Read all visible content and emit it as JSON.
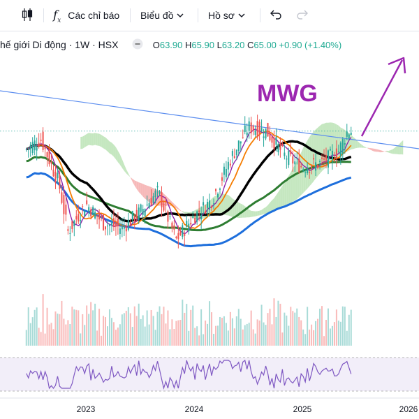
{
  "toolbar": {
    "indicators_label": "Các chỉ báo",
    "chart_label": "Biểu đồ",
    "profile_label": "Hồ sơ",
    "icons": [
      "candles-icon",
      "function-icon",
      "chevron-down-icon",
      "undo-icon",
      "redo-icon"
    ]
  },
  "symbol": {
    "title": "hế giới Di động · 1W · HSX",
    "open_key": "O",
    "open": "63.90",
    "high_key": "H",
    "high": "65.90",
    "low_key": "L",
    "low": "63.20",
    "close_key": "C",
    "close": "65.00",
    "change": "+0.90 (+1.40%)"
  },
  "colors": {
    "up": "#26a69a",
    "down": "#ef5350",
    "ema_black": "#000000",
    "ema_orange": "#f57c00",
    "ema_green": "#2e7d32",
    "ema_blue": "#1e6fdc",
    "ma_purple": "#8e24aa",
    "annotation": "#9c27b0",
    "trendline": "#5b8def",
    "cloud_bull": "#b7e1b0",
    "cloud_bear": "#f4a8a8"
  },
  "chart_data": {
    "type": "candlestick",
    "annotation": "MWG",
    "x_ticks": [
      "2023",
      "2024",
      "2025",
      "2026"
    ],
    "last_close": 65.0,
    "price_points": [
      {
        "x": "2022-06",
        "close": 60
      },
      {
        "x": "2022-08",
        "close": 63
      },
      {
        "x": "2022-10",
        "close": 52
      },
      {
        "x": "2022-11",
        "close": 40
      },
      {
        "x": "2023-01",
        "close": 47
      },
      {
        "x": "2023-03",
        "close": 42
      },
      {
        "x": "2023-05",
        "close": 41
      },
      {
        "x": "2023-07",
        "close": 45
      },
      {
        "x": "2023-09",
        "close": 50
      },
      {
        "x": "2023-11",
        "close": 38
      },
      {
        "x": "2024-01",
        "close": 44
      },
      {
        "x": "2024-03",
        "close": 48
      },
      {
        "x": "2024-05",
        "close": 58
      },
      {
        "x": "2024-07",
        "close": 66
      },
      {
        "x": "2024-09",
        "close": 65
      },
      {
        "x": "2024-11",
        "close": 59
      },
      {
        "x": "2025-01",
        "close": 56
      },
      {
        "x": "2025-03",
        "close": 57
      },
      {
        "x": "2025-05",
        "close": 60
      },
      {
        "x": "2025-06",
        "close": 65
      }
    ]
  }
}
